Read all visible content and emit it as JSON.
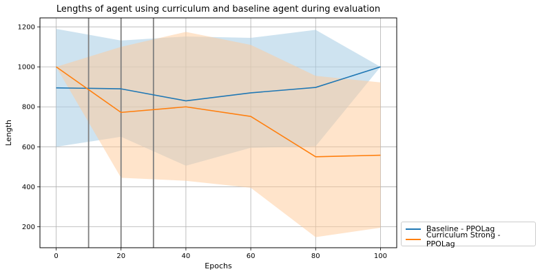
{
  "chart_data": {
    "type": "line",
    "title": "Lengths of agent using curriculum and baseline agent during evaluation",
    "xlabel": "Epochs",
    "ylabel": "Length",
    "xlim": [
      -5,
      105
    ],
    "ylim": [
      95,
      1245
    ],
    "xticks": [
      0,
      20,
      40,
      60,
      80,
      100
    ],
    "yticks": [
      200,
      400,
      600,
      800,
      1000,
      1200
    ],
    "grid": true,
    "legend_position": "outside-bottom-right",
    "vertical_markers": [
      10,
      20,
      30
    ],
    "series": [
      {
        "name": "Baseline - PPOLag",
        "color": "#1f77b4",
        "band_color": "#a6cce3",
        "x": [
          0,
          20,
          40,
          60,
          80,
          100
        ],
        "values": [
          895,
          890,
          830,
          870,
          897,
          1000
        ],
        "upper": [
          1190,
          1132,
          1152,
          1145,
          1185,
          1000
        ],
        "lower": [
          600,
          650,
          505,
          595,
          603,
          1000
        ]
      },
      {
        "name": "Curriculum Strong - PPOLag",
        "color": "#ff7f0e",
        "band_color": "#ffc998",
        "x": [
          0,
          20,
          40,
          60,
          80,
          100
        ],
        "values": [
          1000,
          772,
          800,
          752,
          550,
          558
        ],
        "upper": [
          1000,
          1100,
          1175,
          1110,
          955,
          922
        ],
        "lower": [
          1000,
          445,
          430,
          395,
          148,
          195
        ]
      }
    ]
  }
}
